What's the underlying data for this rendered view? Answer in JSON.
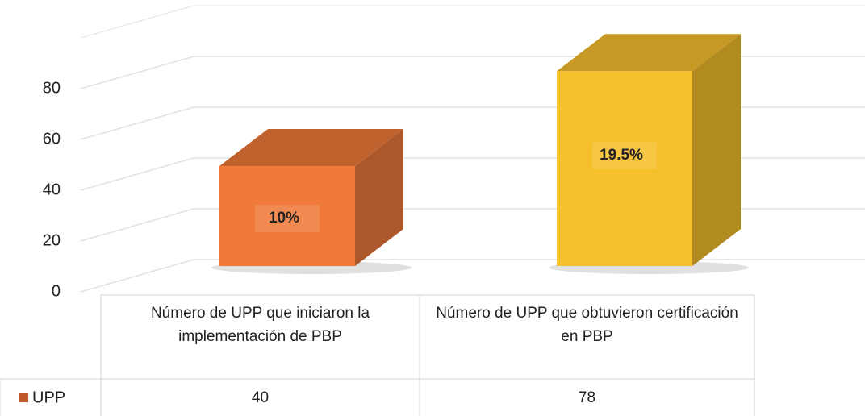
{
  "chart_data": {
    "type": "bar3d",
    "categories": [
      "Número de UPP que iniciaron la implementación de PBP",
      "Número de UPP que obtuvieron certificación en PBP"
    ],
    "series": [
      {
        "name": "UPP",
        "color": "#c0562a",
        "values": [
          40,
          78
        ]
      }
    ],
    "bar_colors": [
      "#f07a3a",
      "#f6bf2c"
    ],
    "annotations": [
      "10%",
      "19.5%"
    ],
    "ylim": [
      0,
      100
    ],
    "yticks": [
      0,
      20,
      40,
      60,
      80
    ],
    "grid": true,
    "data_table": true
  }
}
